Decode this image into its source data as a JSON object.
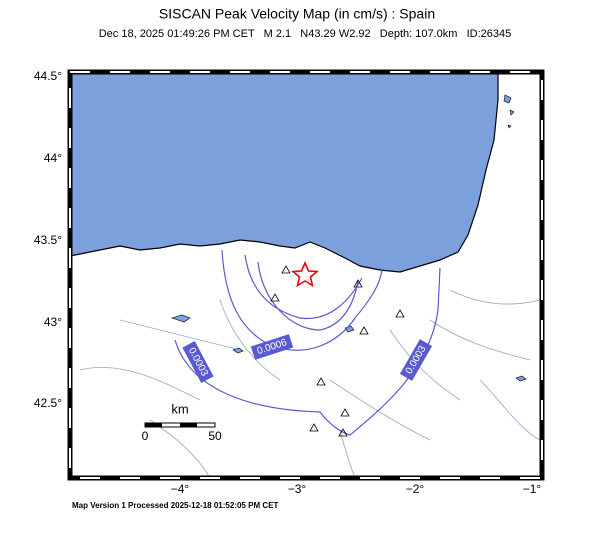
{
  "header": {
    "title": "SISCAN Peak Velocity Map (in cm/s) : Spain",
    "subtitle": "Dec 18, 2025 01:49:26 PM CET   M 2.1   N43.29 W2.92   Depth: 107.0km   ID:26345"
  },
  "map": {
    "lat_ticks": [
      "44.5°",
      "44°",
      "43.5°",
      "43°",
      "42.5°"
    ],
    "lon_ticks": [
      "−4°",
      "−3°",
      "−2°",
      "−1°"
    ],
    "contour_labels": [
      "0.0003",
      "0.0006",
      "0.0003"
    ],
    "scale": {
      "unit": "km",
      "start": "0",
      "end": "50"
    }
  },
  "footer": "Map Version 1 Processed 2025-12-18 01:52:05 PM CET"
}
